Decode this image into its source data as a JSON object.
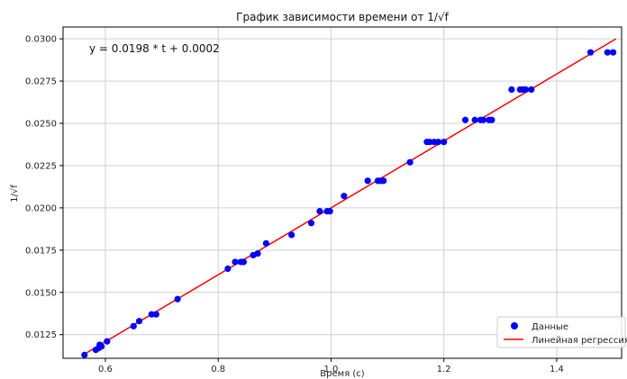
{
  "chart_data": {
    "type": "scatter",
    "title": "График зависимости времени от 1/√f",
    "xlabel": "Время (с)",
    "ylabel": "1/√f",
    "xlim": [
      0.525,
      1.515
    ],
    "ylim": [
      0.0111,
      0.0307
    ],
    "xticks": [
      0.6,
      0.8,
      1.0,
      1.2,
      1.4
    ],
    "xtick_labels": [
      "0.6",
      "0.8",
      "1.0",
      "1.2",
      "1.4"
    ],
    "yticks": [
      0.0125,
      0.015,
      0.0175,
      0.02,
      0.0225,
      0.025,
      0.0275,
      0.03
    ],
    "ytick_labels": [
      "0.0125",
      "0.0150",
      "0.0175",
      "0.0200",
      "0.0225",
      "0.0250",
      "0.0275",
      "0.0300"
    ],
    "grid": true,
    "annotation": "y = 0.0198 * t + 0.0002",
    "legend_position": "bottom-right",
    "colors": {
      "scatter": "#0000ff",
      "line": "#ff0000",
      "grid": "#d0d0d0"
    },
    "series": [
      {
        "name": "Данные",
        "kind": "scatter",
        "points": [
          [
            0.563,
            0.0113
          ],
          [
            0.583,
            0.0116
          ],
          [
            0.588,
            0.0117
          ],
          [
            0.59,
            0.0119
          ],
          [
            0.593,
            0.0118
          ],
          [
            0.603,
            0.0121
          ],
          [
            0.65,
            0.013
          ],
          [
            0.66,
            0.0133
          ],
          [
            0.682,
            0.0137
          ],
          [
            0.69,
            0.0137
          ],
          [
            0.728,
            0.0146
          ],
          [
            0.817,
            0.0164
          ],
          [
            0.83,
            0.0168
          ],
          [
            0.84,
            0.0168
          ],
          [
            0.845,
            0.0168
          ],
          [
            0.862,
            0.0172
          ],
          [
            0.87,
            0.0173
          ],
          [
            0.885,
            0.0179
          ],
          [
            0.93,
            0.0184
          ],
          [
            0.965,
            0.0191
          ],
          [
            0.98,
            0.0198
          ],
          [
            0.993,
            0.0198
          ],
          [
            0.998,
            0.0198
          ],
          [
            1.023,
            0.0207
          ],
          [
            1.065,
            0.0216
          ],
          [
            1.083,
            0.0216
          ],
          [
            1.088,
            0.0216
          ],
          [
            1.093,
            0.0216
          ],
          [
            1.14,
            0.0227
          ],
          [
            1.17,
            0.0239
          ],
          [
            1.175,
            0.0239
          ],
          [
            1.183,
            0.0239
          ],
          [
            1.19,
            0.0239
          ],
          [
            1.2,
            0.0239
          ],
          [
            1.238,
            0.0252
          ],
          [
            1.255,
            0.0252
          ],
          [
            1.265,
            0.0252
          ],
          [
            1.27,
            0.0252
          ],
          [
            1.28,
            0.0252
          ],
          [
            1.285,
            0.0252
          ],
          [
            1.32,
            0.027
          ],
          [
            1.335,
            0.027
          ],
          [
            1.34,
            0.027
          ],
          [
            1.345,
            0.027
          ],
          [
            1.355,
            0.027
          ],
          [
            1.46,
            0.0292
          ],
          [
            1.49,
            0.0292
          ],
          [
            1.5,
            0.0292
          ]
        ]
      },
      {
        "name": "Линейная регрессия",
        "kind": "line",
        "slope": 0.0198,
        "intercept": 0.0002,
        "x_range": [
          0.563,
          1.505
        ]
      }
    ]
  }
}
